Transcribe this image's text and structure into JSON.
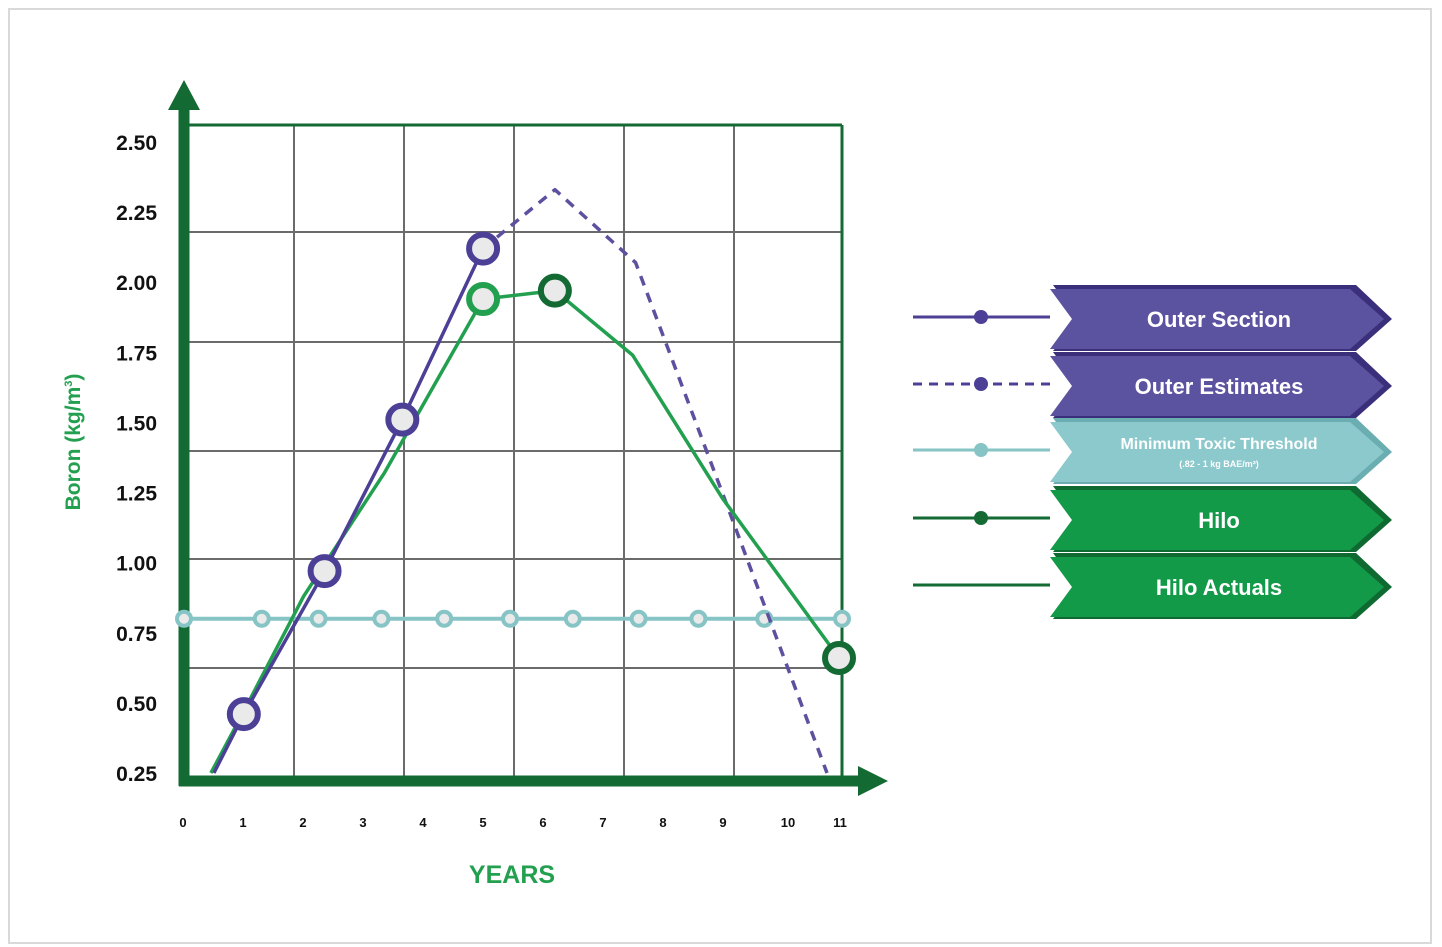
{
  "chart_data": {
    "type": "line",
    "title": "",
    "ylabel": "Boron (kg/m",
    "ylabel_sup": "3",
    "ylabel_close": ")",
    "xlabel": "YEARS",
    "xlim": [
      0,
      11
    ],
    "ylim": [
      0.25,
      2.5
    ],
    "x_ticks": [
      0,
      1,
      2,
      3,
      4,
      5,
      6,
      7,
      8,
      9,
      10,
      11
    ],
    "y_ticks": [
      "2.50",
      "2.25",
      "2.00",
      "1.75",
      "1.50",
      "1.25",
      "1.00",
      "0.75",
      "0.50",
      "0.25"
    ],
    "grid": true,
    "legend_position": "right",
    "series": [
      {
        "name": "Outer Section",
        "style": "solid",
        "color": "#4b3f96",
        "points": [
          [
            0.5,
            0.25
          ],
          [
            1,
            0.46
          ],
          [
            2.35,
            0.97
          ],
          [
            3.65,
            1.51
          ],
          [
            5,
            2.12
          ]
        ],
        "markers": [
          [
            1,
            0.46
          ],
          [
            2.35,
            0.97
          ],
          [
            3.65,
            1.51
          ],
          [
            5,
            2.12
          ]
        ]
      },
      {
        "name": "Outer Estimates",
        "style": "dashed",
        "color": "#5d519f",
        "points": [
          [
            5,
            2.12
          ],
          [
            6.2,
            2.33
          ],
          [
            7.55,
            2.07
          ],
          [
            9.05,
            1.22
          ],
          [
            10.75,
            0.25
          ]
        ],
        "markers": []
      },
      {
        "name": "Minimum Toxic Threshold",
        "style": "solid",
        "color": "#86c4c6",
        "points": [
          [
            0,
            0.8
          ],
          [
            11,
            0.8
          ]
        ],
        "markers": [
          [
            0,
            0.8
          ],
          [
            1.3,
            0.8
          ],
          [
            2.25,
            0.8
          ],
          [
            3.3,
            0.8
          ],
          [
            4.35,
            0.8
          ],
          [
            5.45,
            0.8
          ],
          [
            6.5,
            0.8
          ],
          [
            7.6,
            0.8
          ],
          [
            8.6,
            0.8
          ],
          [
            9.7,
            0.8
          ],
          [
            11,
            0.8
          ]
        ]
      },
      {
        "name": "Hilo Actuals",
        "style": "solid",
        "color": "#23a04f",
        "points": [
          [
            0.45,
            0.25
          ],
          [
            1,
            0.47
          ],
          [
            2,
            0.88
          ],
          [
            3.35,
            1.32
          ],
          [
            5,
            1.94
          ],
          [
            6.2,
            1.97
          ],
          [
            7.5,
            1.74
          ],
          [
            9,
            1.23
          ],
          [
            10.95,
            0.66
          ]
        ],
        "markers": [
          [
            5,
            1.94
          ]
        ]
      },
      {
        "name": "Hilo",
        "style": "markers",
        "color": "#146a33",
        "points": [],
        "markers": [
          [
            6.2,
            1.97
          ],
          [
            10.95,
            0.66
          ]
        ]
      }
    ],
    "legend": [
      {
        "label": "Outer Section",
        "sublabel": "",
        "line": "solid",
        "dot": true,
        "line_color": "#4b3f96",
        "fill": "#5b52a0",
        "shadow": "#3a2f7a"
      },
      {
        "label": "Outer Estimates",
        "sublabel": "",
        "line": "dashed",
        "dot": true,
        "line_color": "#4b3f96",
        "fill": "#5b52a0",
        "shadow": "#3a2f7a"
      },
      {
        "label": "Minimum Toxic Threshold",
        "sublabel": "(.82 - 1 kg BAE/m³)",
        "line": "solid",
        "dot": true,
        "line_color": "#86c4c6",
        "fill": "#8cc9cd",
        "shadow": "#6aaeb2"
      },
      {
        "label": "Hilo",
        "sublabel": "",
        "line": "solid",
        "dot": true,
        "line_color": "#146a33",
        "fill": "#139a48",
        "shadow": "#0f6a32"
      },
      {
        "label": "Hilo Actuals",
        "sublabel": "",
        "line": "solid",
        "dot": false,
        "line_color": "#146a33",
        "fill": "#139a48",
        "shadow": "#0f6a32"
      }
    ],
    "axis_color": "#146a33",
    "grid_color": "#6b6b6b",
    "ylabel_color": "#23a04f",
    "xlabel_color": "#23a04f"
  }
}
